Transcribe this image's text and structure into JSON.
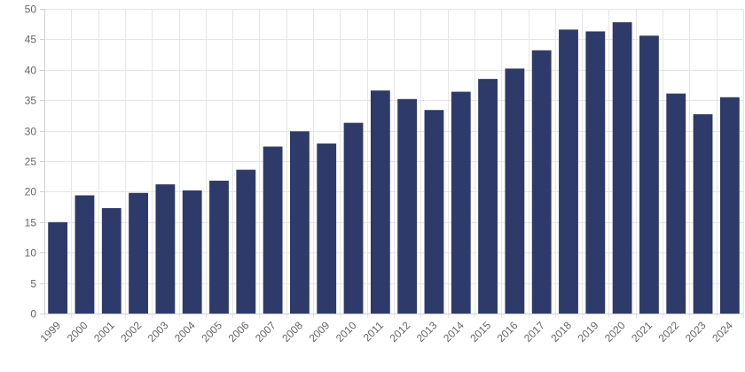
{
  "chart_data": {
    "type": "bar",
    "title": "",
    "xlabel": "",
    "ylabel": "",
    "categories": [
      "1999",
      "2000",
      "2001",
      "2002",
      "2003",
      "2004",
      "2005",
      "2006",
      "2007",
      "2008",
      "2009",
      "2010",
      "2011",
      "2012",
      "2013",
      "2014",
      "2015",
      "2016",
      "2017",
      "2018",
      "2019",
      "2020",
      "2021",
      "2022",
      "2023",
      "2024"
    ],
    "series": [
      {
        "color": "#2e3a69",
        "values": [
          15.0,
          19.4,
          17.3,
          19.8,
          21.2,
          20.2,
          21.8,
          23.6,
          27.4,
          29.9,
          27.9,
          31.3,
          36.6,
          35.2,
          33.4,
          36.4,
          38.5,
          40.2,
          43.2,
          46.6,
          46.3,
          47.8,
          45.6,
          36.1,
          32.7,
          35.5
        ]
      }
    ],
    "ylim": [
      0,
      50
    ],
    "yticks": [
      0,
      5,
      10,
      15,
      20,
      25,
      30,
      35,
      40,
      45,
      50
    ],
    "grid": true,
    "legend": "none"
  }
}
